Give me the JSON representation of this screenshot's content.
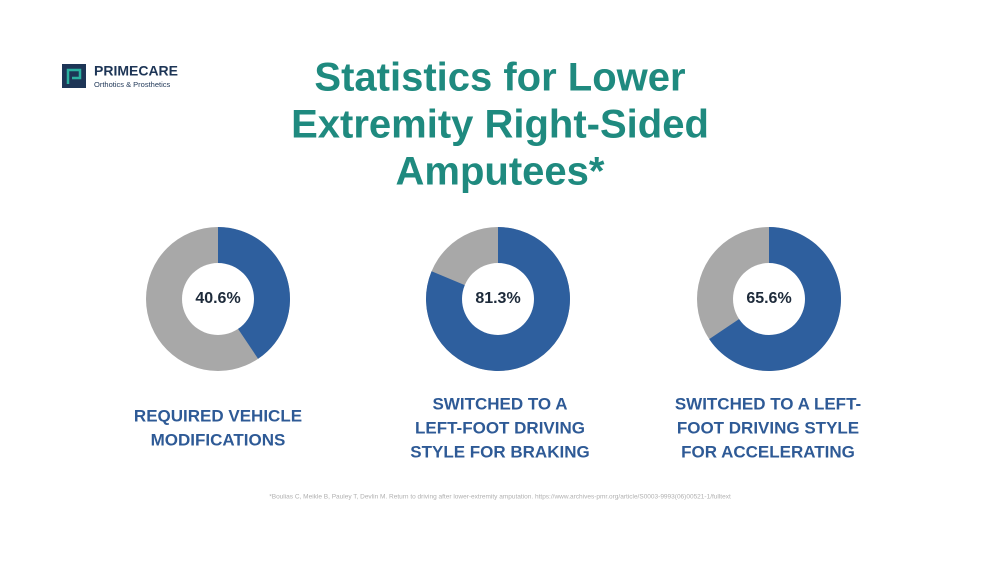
{
  "header": {
    "brand": "PRIMECARE",
    "tagline": "Orthotics & Prosthetics",
    "title": [
      "Statistics for Lower",
      "Extremity Right-Sided",
      "Amputees*"
    ]
  },
  "chart_data": [
    {
      "type": "donut",
      "values": [
        40.6
      ],
      "value_labels": [
        "40.6%"
      ],
      "color": "#2e5f9e",
      "caption": [
        "REQUIRED VEHICLE",
        "MODIFICATIONS"
      ]
    },
    {
      "type": "donut",
      "values": [
        81.3
      ],
      "value_labels": [
        "81.3%"
      ],
      "color": "#2e5f9e",
      "caption": [
        "SWITCHED TO A",
        "LEFT-FOOT DRIVING",
        "STYLE FOR BRAKING"
      ]
    },
    {
      "type": "donut",
      "values": [
        65.6
      ],
      "value_labels": [
        "65.6%"
      ],
      "color": "#2e5f9e",
      "caption": [
        "SWITCHED TO A LEFT-",
        "FOOT DRIVING STYLE",
        "FOR ACCELERATING"
      ]
    }
  ],
  "footnote": "*Boulias C, Meikle B, Pauley T, Devlin M. Return to driving after lower-extremity amputation. https://www.archives-pmr.org/article/S0003-9993(06)00521-1/fulltext"
}
